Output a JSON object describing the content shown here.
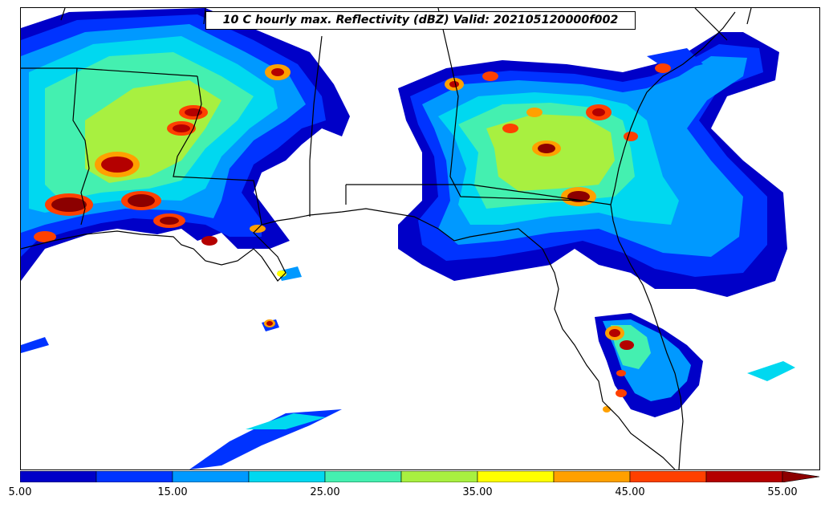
{
  "title": "10 C hourly max. Reflectivity (dBZ) Valid: 202105120000f002",
  "colorbar": {
    "units": "dBZ",
    "min": 5,
    "max": 55,
    "extend": "max",
    "levels": [
      5,
      10,
      15,
      20,
      25,
      30,
      35,
      40,
      45,
      50,
      55
    ],
    "colors": [
      "#0000c8",
      "#0033ff",
      "#0099ff",
      "#00d8f0",
      "#44f0b0",
      "#a8f040",
      "#ffff00",
      "#ffa000",
      "#ff4000",
      "#b40000"
    ],
    "extend_color": "#8c0000",
    "tick_labels": [
      "5.00",
      "15.00",
      "25.00",
      "35.00",
      "45.00",
      "55.00"
    ]
  }
}
